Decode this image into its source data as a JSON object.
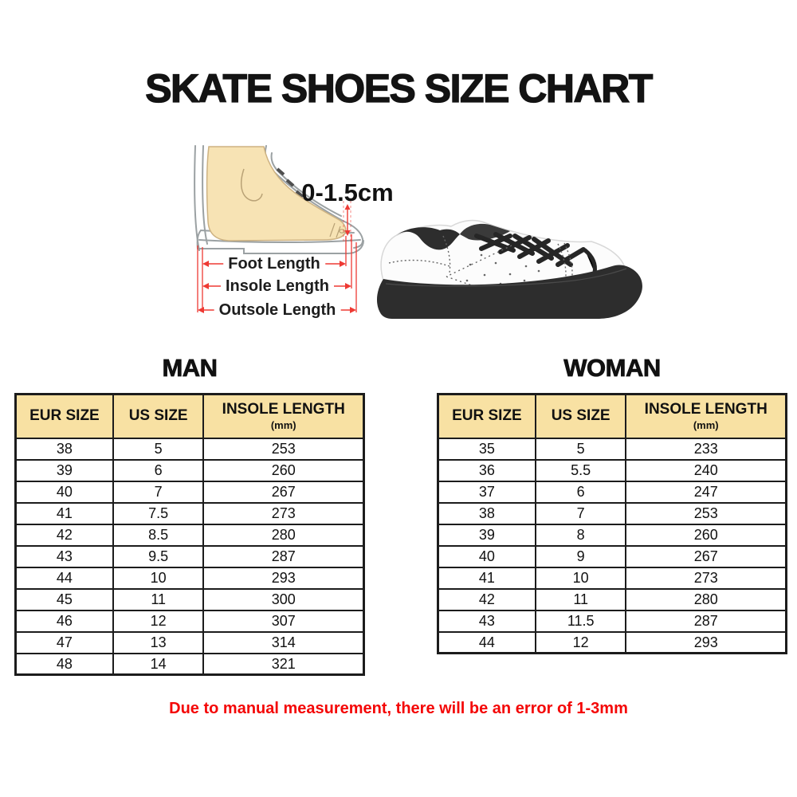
{
  "page": {
    "title": "SKATE SHOES SIZE CHART",
    "footer_note": "Due to manual measurement, there will be an error of 1-3mm"
  },
  "diagram": {
    "gap_label": "0-1.5cm",
    "labels": {
      "foot": "Foot Length",
      "insole": "Insole Length",
      "outsole": "Outsole Length"
    }
  },
  "size_tables": {
    "man": {
      "title": "MAN",
      "columns": [
        {
          "label": "EUR SIZE"
        },
        {
          "label": "US SIZE"
        },
        {
          "label": "INSOLE LENGTH",
          "sub": "(mm)"
        }
      ],
      "rows": [
        [
          "38",
          "5",
          "253"
        ],
        [
          "39",
          "6",
          "260"
        ],
        [
          "40",
          "7",
          "267"
        ],
        [
          "41",
          "7.5",
          "273"
        ],
        [
          "42",
          "8.5",
          "280"
        ],
        [
          "43",
          "9.5",
          "287"
        ],
        [
          "44",
          "10",
          "293"
        ],
        [
          "45",
          "11",
          "300"
        ],
        [
          "46",
          "12",
          "307"
        ],
        [
          "47",
          "13",
          "314"
        ],
        [
          "48",
          "14",
          "321"
        ]
      ]
    },
    "woman": {
      "title": "WOMAN",
      "columns": [
        {
          "label": "EUR SIZE"
        },
        {
          "label": "US SIZE"
        },
        {
          "label": "INSOLE LENGTH",
          "sub": "(mm)"
        }
      ],
      "rows": [
        [
          "35",
          "5",
          "233"
        ],
        [
          "36",
          "5.5",
          "240"
        ],
        [
          "37",
          "6",
          "247"
        ],
        [
          "38",
          "7",
          "253"
        ],
        [
          "39",
          "8",
          "260"
        ],
        [
          "40",
          "9",
          "267"
        ],
        [
          "41",
          "10",
          "273"
        ],
        [
          "42",
          "11",
          "280"
        ],
        [
          "43",
          "11.5",
          "287"
        ],
        [
          "44",
          "12",
          "293"
        ]
      ]
    }
  },
  "colors": {
    "header_bg": "#f8e1a3",
    "table_border": "#1c1c1c",
    "note_red": "#f40606",
    "measure_red": "#ee3a34",
    "skin": "#f7e3b4",
    "shoe_dark": "#2d2d2d"
  }
}
